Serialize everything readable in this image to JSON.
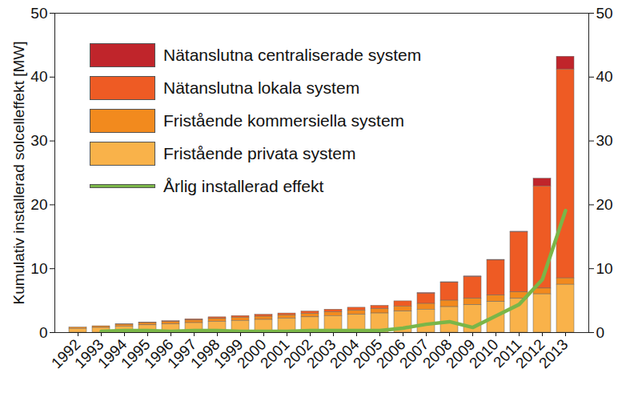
{
  "chart_data": {
    "type": "bar",
    "stacked": true,
    "y_label": "Kumulativ installerad solcelleffekt [MW]",
    "legend": "top-left",
    "categories": [
      "1992",
      "1993",
      "1994",
      "1995",
      "1996",
      "1997",
      "1998",
      "1999",
      "2000",
      "2001",
      "2002",
      "2003",
      "2004",
      "2005",
      "2006",
      "2007",
      "2008",
      "2009",
      "2010",
      "2011",
      "2012",
      "2013"
    ],
    "ylim": [
      0,
      50
    ],
    "yticks": [
      0,
      10,
      20,
      30,
      40,
      50
    ],
    "y2lim": [
      0,
      50
    ],
    "y2ticks": [
      0,
      10,
      20,
      30,
      40,
      50
    ],
    "series": [
      {
        "name": "Nätanslutna centraliserade system",
        "type": "bar",
        "color": "#c0252b",
        "values": [
          0,
          0,
          0,
          0,
          0,
          0,
          0,
          0,
          0,
          0,
          0,
          0,
          0,
          0,
          0,
          0.1,
          0.1,
          0.1,
          0.1,
          0.1,
          1.2,
          2.0
        ]
      },
      {
        "name": "Nätanslutna lokala system",
        "type": "bar",
        "color": "#ee5b24",
        "values": [
          0,
          0,
          0.05,
          0.1,
          0.15,
          0.2,
          0.25,
          0.25,
          0.3,
          0.3,
          0.35,
          0.4,
          0.45,
          0.5,
          0.8,
          1.6,
          2.8,
          3.4,
          5.5,
          9.4,
          16.0,
          32.7
        ]
      },
      {
        "name": "Fristående kommersiella system",
        "type": "bar",
        "color": "#f28a1e",
        "values": [
          0.2,
          0.25,
          0.3,
          0.35,
          0.35,
          0.4,
          0.45,
          0.5,
          0.5,
          0.5,
          0.55,
          0.6,
          0.65,
          0.7,
          0.8,
          0.9,
          1.0,
          1.0,
          1.0,
          1.0,
          0.9,
          1.0
        ]
      },
      {
        "name": "Fristående privata system",
        "type": "bar",
        "color": "#f9b24a",
        "values": [
          0.6,
          0.75,
          0.95,
          1.15,
          1.3,
          1.5,
          1.7,
          1.85,
          2.0,
          2.2,
          2.4,
          2.6,
          2.8,
          3.0,
          3.3,
          3.6,
          4.0,
          4.3,
          4.8,
          5.3,
          6.0,
          7.5
        ]
      },
      {
        "name": "Årlig installerad effekt",
        "type": "line",
        "axis": "y2",
        "color": "#7ab648",
        "values": [
          null,
          0.2,
          0.3,
          0.3,
          0.2,
          0.3,
          0.3,
          0.2,
          0.2,
          0.2,
          0.3,
          0.3,
          0.3,
          0.3,
          0.7,
          1.3,
          1.7,
          0.8,
          2.6,
          4.4,
          8.3,
          19.1
        ]
      }
    ]
  }
}
